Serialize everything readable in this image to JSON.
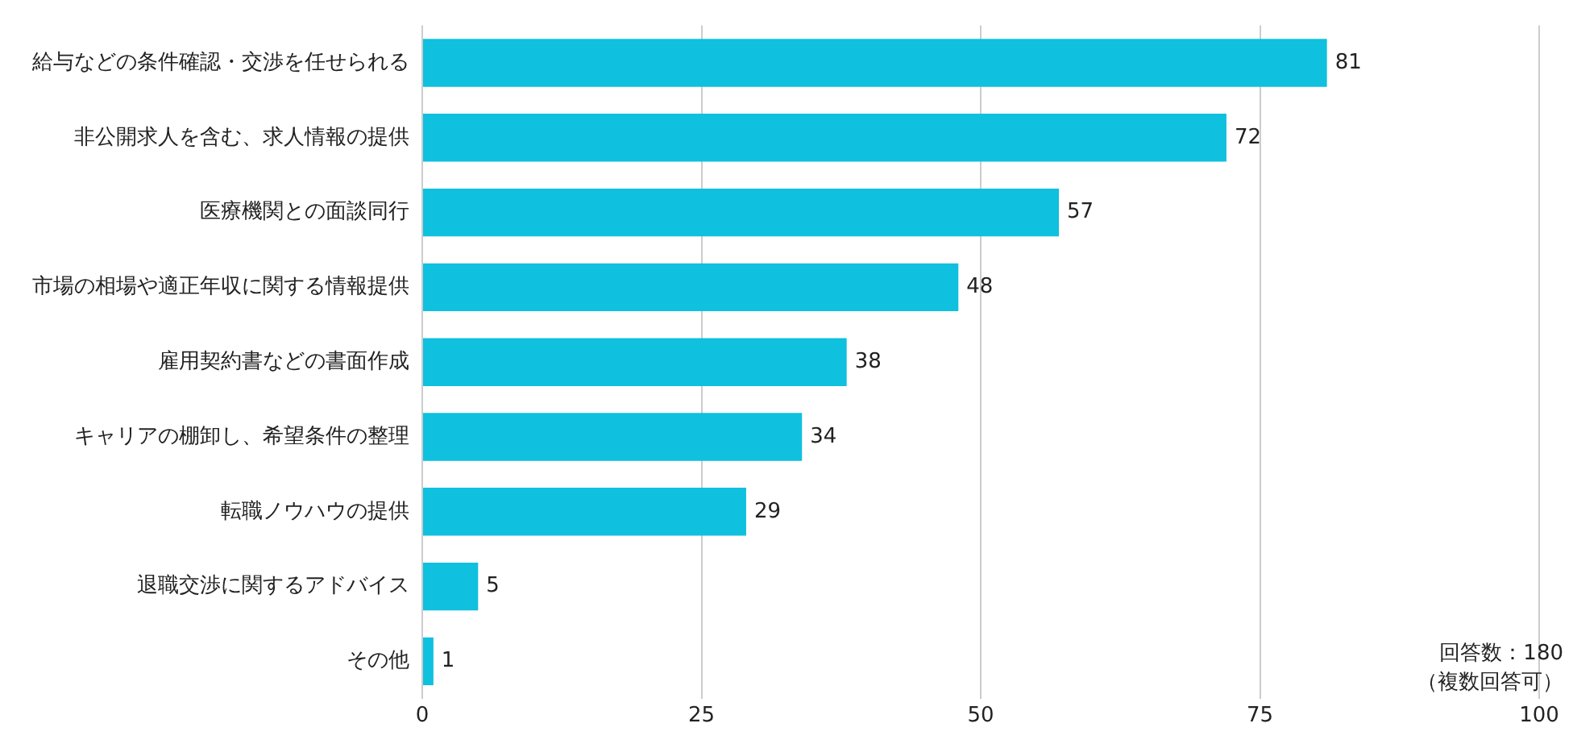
{
  "chart_data": {
    "type": "bar",
    "orientation": "horizontal",
    "categories": [
      "給与などの条件確認・交渉を任せられる",
      "非公開求人を含む、求人情報の提供",
      "医療機関との面談同行",
      "市場の相場や適正年収に関する情報提供",
      "雇用契約書などの書面作成",
      "キャリアの棚卸し、希望条件の整理",
      "転職ノウハウの提供",
      "退職交渉に関するアドバイス",
      "その他"
    ],
    "values": [
      81,
      72,
      57,
      48,
      38,
      34,
      29,
      5,
      1
    ],
    "color": "#0fc0df",
    "xlim": [
      0,
      100
    ],
    "xticks": [
      0,
      25,
      50,
      75,
      100
    ],
    "grid": "x",
    "legend": false,
    "data_labels": true,
    "annotations": [
      "回答数：180",
      "（複数回答可）"
    ]
  }
}
